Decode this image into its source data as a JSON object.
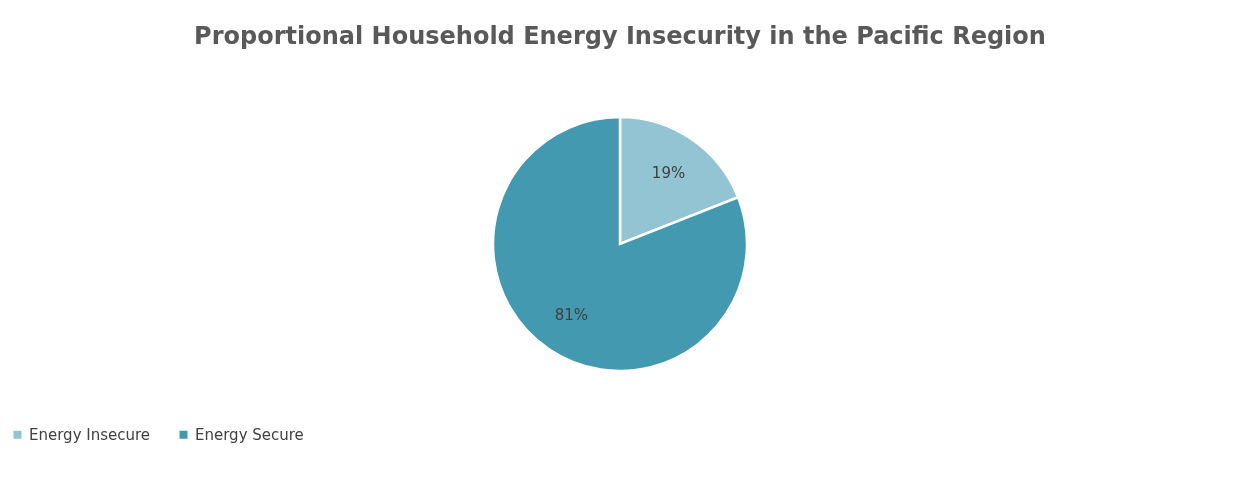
{
  "chart_data": {
    "type": "pie",
    "title": "Proportional Household Energy Insecurity in the Pacific Region",
    "categories": [
      "Energy Insecure",
      "Energy Secure"
    ],
    "values": [
      19,
      81
    ],
    "colors": [
      "#93c4d4",
      "#4299b0"
    ],
    "value_labels": [
      "19%",
      "81%"
    ],
    "legend": "bottom"
  }
}
